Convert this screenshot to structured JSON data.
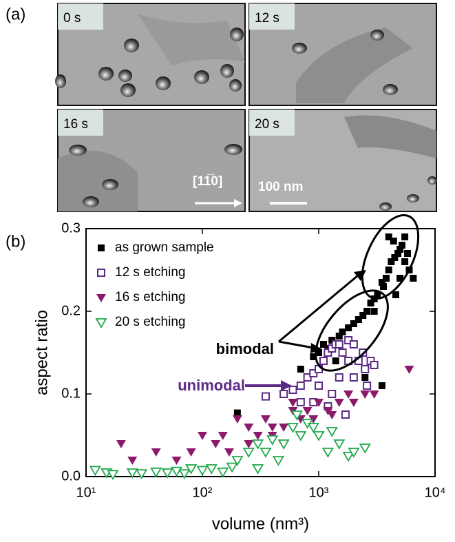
{
  "panel_a": {
    "label": "(a)",
    "images": [
      {
        "label": "0 s"
      },
      {
        "label": "12 s"
      },
      {
        "label": "16 s"
      },
      {
        "label": "20 s"
      }
    ],
    "direction": "[11̅0]",
    "scale_bar": "100 nm"
  },
  "chart_data": {
    "type": "scatter",
    "panel_label": "(b)",
    "x_label": "volume (nm³)",
    "y_label": "aspect ratio",
    "xlim": [
      10,
      10000
    ],
    "x_log": true,
    "xticks": [
      {
        "value": 10,
        "label": "10¹"
      },
      {
        "value": 100,
        "label": "10²"
      },
      {
        "value": 1000,
        "label": "10³"
      },
      {
        "value": 10000,
        "label": "10⁴"
      }
    ],
    "ylim": [
      0,
      0.3
    ],
    "yticks": [
      {
        "value": 0,
        "label": "0.0"
      },
      0.1,
      0.2,
      0.3
    ],
    "grid": false,
    "legend": "top-left",
    "annotations": [
      {
        "text": "bimodal",
        "color": "#000000"
      },
      {
        "text": "unimodal",
        "color": "#5b2a86"
      }
    ],
    "series": [
      {
        "name": "as grown sample",
        "color": "#000000",
        "marker": "square",
        "filled": true,
        "x": [
          200,
          700,
          900,
          1000,
          1100,
          1200,
          1300,
          1500,
          1600,
          1800,
          2000,
          2200,
          2400,
          2600,
          2800,
          3000,
          3200,
          3500,
          3800,
          4000,
          4200,
          4500,
          4800,
          5000,
          5200,
          5500,
          5800,
          6000,
          4400,
          3600,
          5000,
          4600,
          2500,
          3500,
          1400,
          2000,
          3000,
          5500,
          4000,
          6500
        ],
        "values": [
          0.077,
          0.13,
          0.145,
          0.15,
          0.16,
          0.155,
          0.165,
          0.17,
          0.175,
          0.18,
          0.185,
          0.19,
          0.195,
          0.2,
          0.21,
          0.215,
          0.22,
          0.235,
          0.24,
          0.25,
          0.26,
          0.265,
          0.27,
          0.275,
          0.28,
          0.26,
          0.27,
          0.25,
          0.285,
          0.23,
          0.24,
          0.22,
          0.12,
          0.11,
          0.14,
          0.16,
          0.2,
          0.29,
          0.29,
          0.24
        ]
      },
      {
        "name": "12 s etching",
        "color": "#5b2a86",
        "marker": "square",
        "filled": false,
        "x": [
          350,
          500,
          600,
          700,
          800,
          900,
          1000,
          1100,
          1200,
          1300,
          1400,
          1500,
          1600,
          1800,
          2000,
          2200,
          2500,
          2800,
          3000,
          1700,
          1200,
          900,
          1500,
          2000,
          2600,
          1000,
          700,
          1800,
          2400,
          1300
        ],
        "values": [
          0.097,
          0.1,
          0.105,
          0.11,
          0.12,
          0.125,
          0.13,
          0.14,
          0.15,
          0.155,
          0.16,
          0.16,
          0.15,
          0.165,
          0.16,
          0.14,
          0.13,
          0.14,
          0.135,
          0.075,
          0.085,
          0.09,
          0.12,
          0.12,
          0.11,
          0.11,
          0.09,
          0.14,
          0.15,
          0.1
        ]
      },
      {
        "name": "16 s etching",
        "color": "#8b1a6b",
        "marker": "triangle-down",
        "filled": true,
        "x": [
          20,
          25,
          40,
          60,
          80,
          100,
          130,
          170,
          200,
          250,
          300,
          350,
          400,
          500,
          600,
          700,
          800,
          900,
          1000,
          1200,
          1500,
          1800,
          2000,
          2500,
          3000,
          6000,
          150,
          250,
          400,
          600,
          900,
          1300
        ],
        "values": [
          0.04,
          0.02,
          0.03,
          0.02,
          0.03,
          0.05,
          0.04,
          0.03,
          0.07,
          0.06,
          0.05,
          0.07,
          0.06,
          0.06,
          0.08,
          0.07,
          0.08,
          0.07,
          0.09,
          0.08,
          0.09,
          0.1,
          0.09,
          0.1,
          0.1,
          0.13,
          0.05,
          0.04,
          0.05,
          0.09,
          0.06,
          0.075
        ]
      },
      {
        "name": "20 s etching",
        "color": "#1fa84a",
        "marker": "triangle-down",
        "filled": false,
        "x": [
          12,
          15,
          17,
          25,
          30,
          40,
          50,
          60,
          70,
          80,
          100,
          120,
          150,
          180,
          200,
          250,
          300,
          350,
          400,
          500,
          600,
          700,
          800,
          1000,
          1200,
          1500,
          1800,
          2000,
          2500,
          300,
          450,
          650,
          900,
          1300
        ],
        "values": [
          0.008,
          0.005,
          0.003,
          0.005,
          0.004,
          0.006,
          0.005,
          0.007,
          0.004,
          0.01,
          0.008,
          0.01,
          0.006,
          0.012,
          0.02,
          0.03,
          0.04,
          0.03,
          0.045,
          0.04,
          0.06,
          0.05,
          0.065,
          0.05,
          0.03,
          0.04,
          0.025,
          0.03,
          0.035,
          0.01,
          0.02,
          0.075,
          0.06,
          0.055
        ]
      }
    ]
  }
}
